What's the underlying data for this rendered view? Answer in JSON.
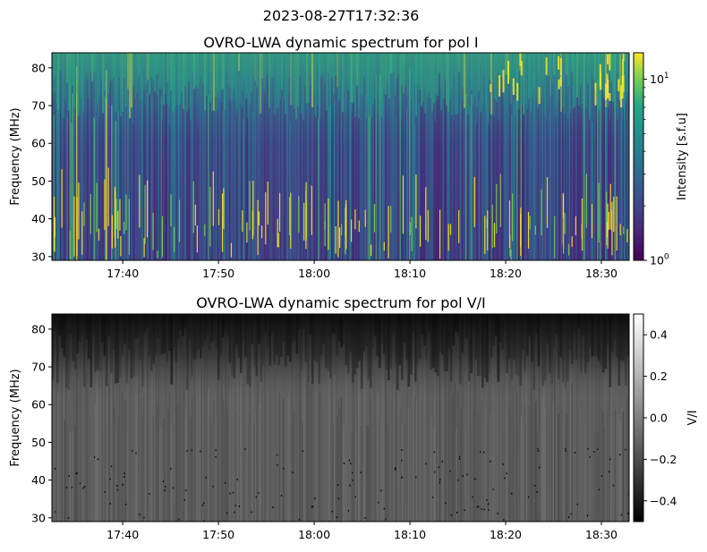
{
  "suptitle": "2023-08-27T17:32:36",
  "colors": {
    "axis": "#000000",
    "background": "#ffffff",
    "colormap_top": "viridis",
    "colormap_bottom": "gray"
  },
  "chart_data": [
    {
      "type": "heatmap",
      "title": "OVRO-LWA dynamic spectrum for pol I",
      "xlabel": "",
      "ylabel": "Frequency (MHz)",
      "x_ticks": [
        "17:40",
        "17:50",
        "18:00",
        "18:10",
        "18:20",
        "18:30"
      ],
      "x_tick_minutes": [
        460,
        470,
        480,
        490,
        500,
        510
      ],
      "xlim_minutes": [
        452.6,
        512.9
      ],
      "y_ticks": [
        "30",
        "40",
        "50",
        "60",
        "70",
        "80"
      ],
      "y_tick_values": [
        30,
        40,
        50,
        60,
        70,
        80
      ],
      "ylim": [
        29,
        84
      ],
      "colorbar": {
        "label": "Intensity [s.f.u]",
        "scale": "log",
        "colormap": "viridis",
        "range": [
          1,
          14
        ],
        "major_ticks": [
          {
            "value": 1,
            "base": "10",
            "exp": "0"
          },
          {
            "value": 10,
            "base": "10",
            "exp": "1"
          }
        ],
        "minor_tick_values": [
          2,
          3,
          4,
          5,
          6,
          7,
          8,
          9
        ]
      }
    },
    {
      "type": "heatmap",
      "title": "OVRO-LWA dynamic spectrum for pol V/I",
      "xlabel": "",
      "ylabel": "Frequency (MHz)",
      "x_ticks": [
        "17:40",
        "17:50",
        "18:00",
        "18:10",
        "18:20",
        "18:30"
      ],
      "x_tick_minutes": [
        460,
        470,
        480,
        490,
        500,
        510
      ],
      "xlim_minutes": [
        452.6,
        512.9
      ],
      "y_ticks": [
        "30",
        "40",
        "50",
        "60",
        "70",
        "80"
      ],
      "y_tick_values": [
        30,
        40,
        50,
        60,
        70,
        80
      ],
      "ylim": [
        29,
        84
      ],
      "colorbar": {
        "label": "V/I",
        "scale": "linear",
        "colormap": "gray",
        "range": [
          -0.5,
          0.5
        ],
        "ticks": [
          "0.4",
          "0.2",
          "0.0",
          "−0.2",
          "−0.4"
        ],
        "tick_values": [
          0.4,
          0.2,
          0.0,
          -0.2,
          -0.4
        ]
      }
    }
  ]
}
